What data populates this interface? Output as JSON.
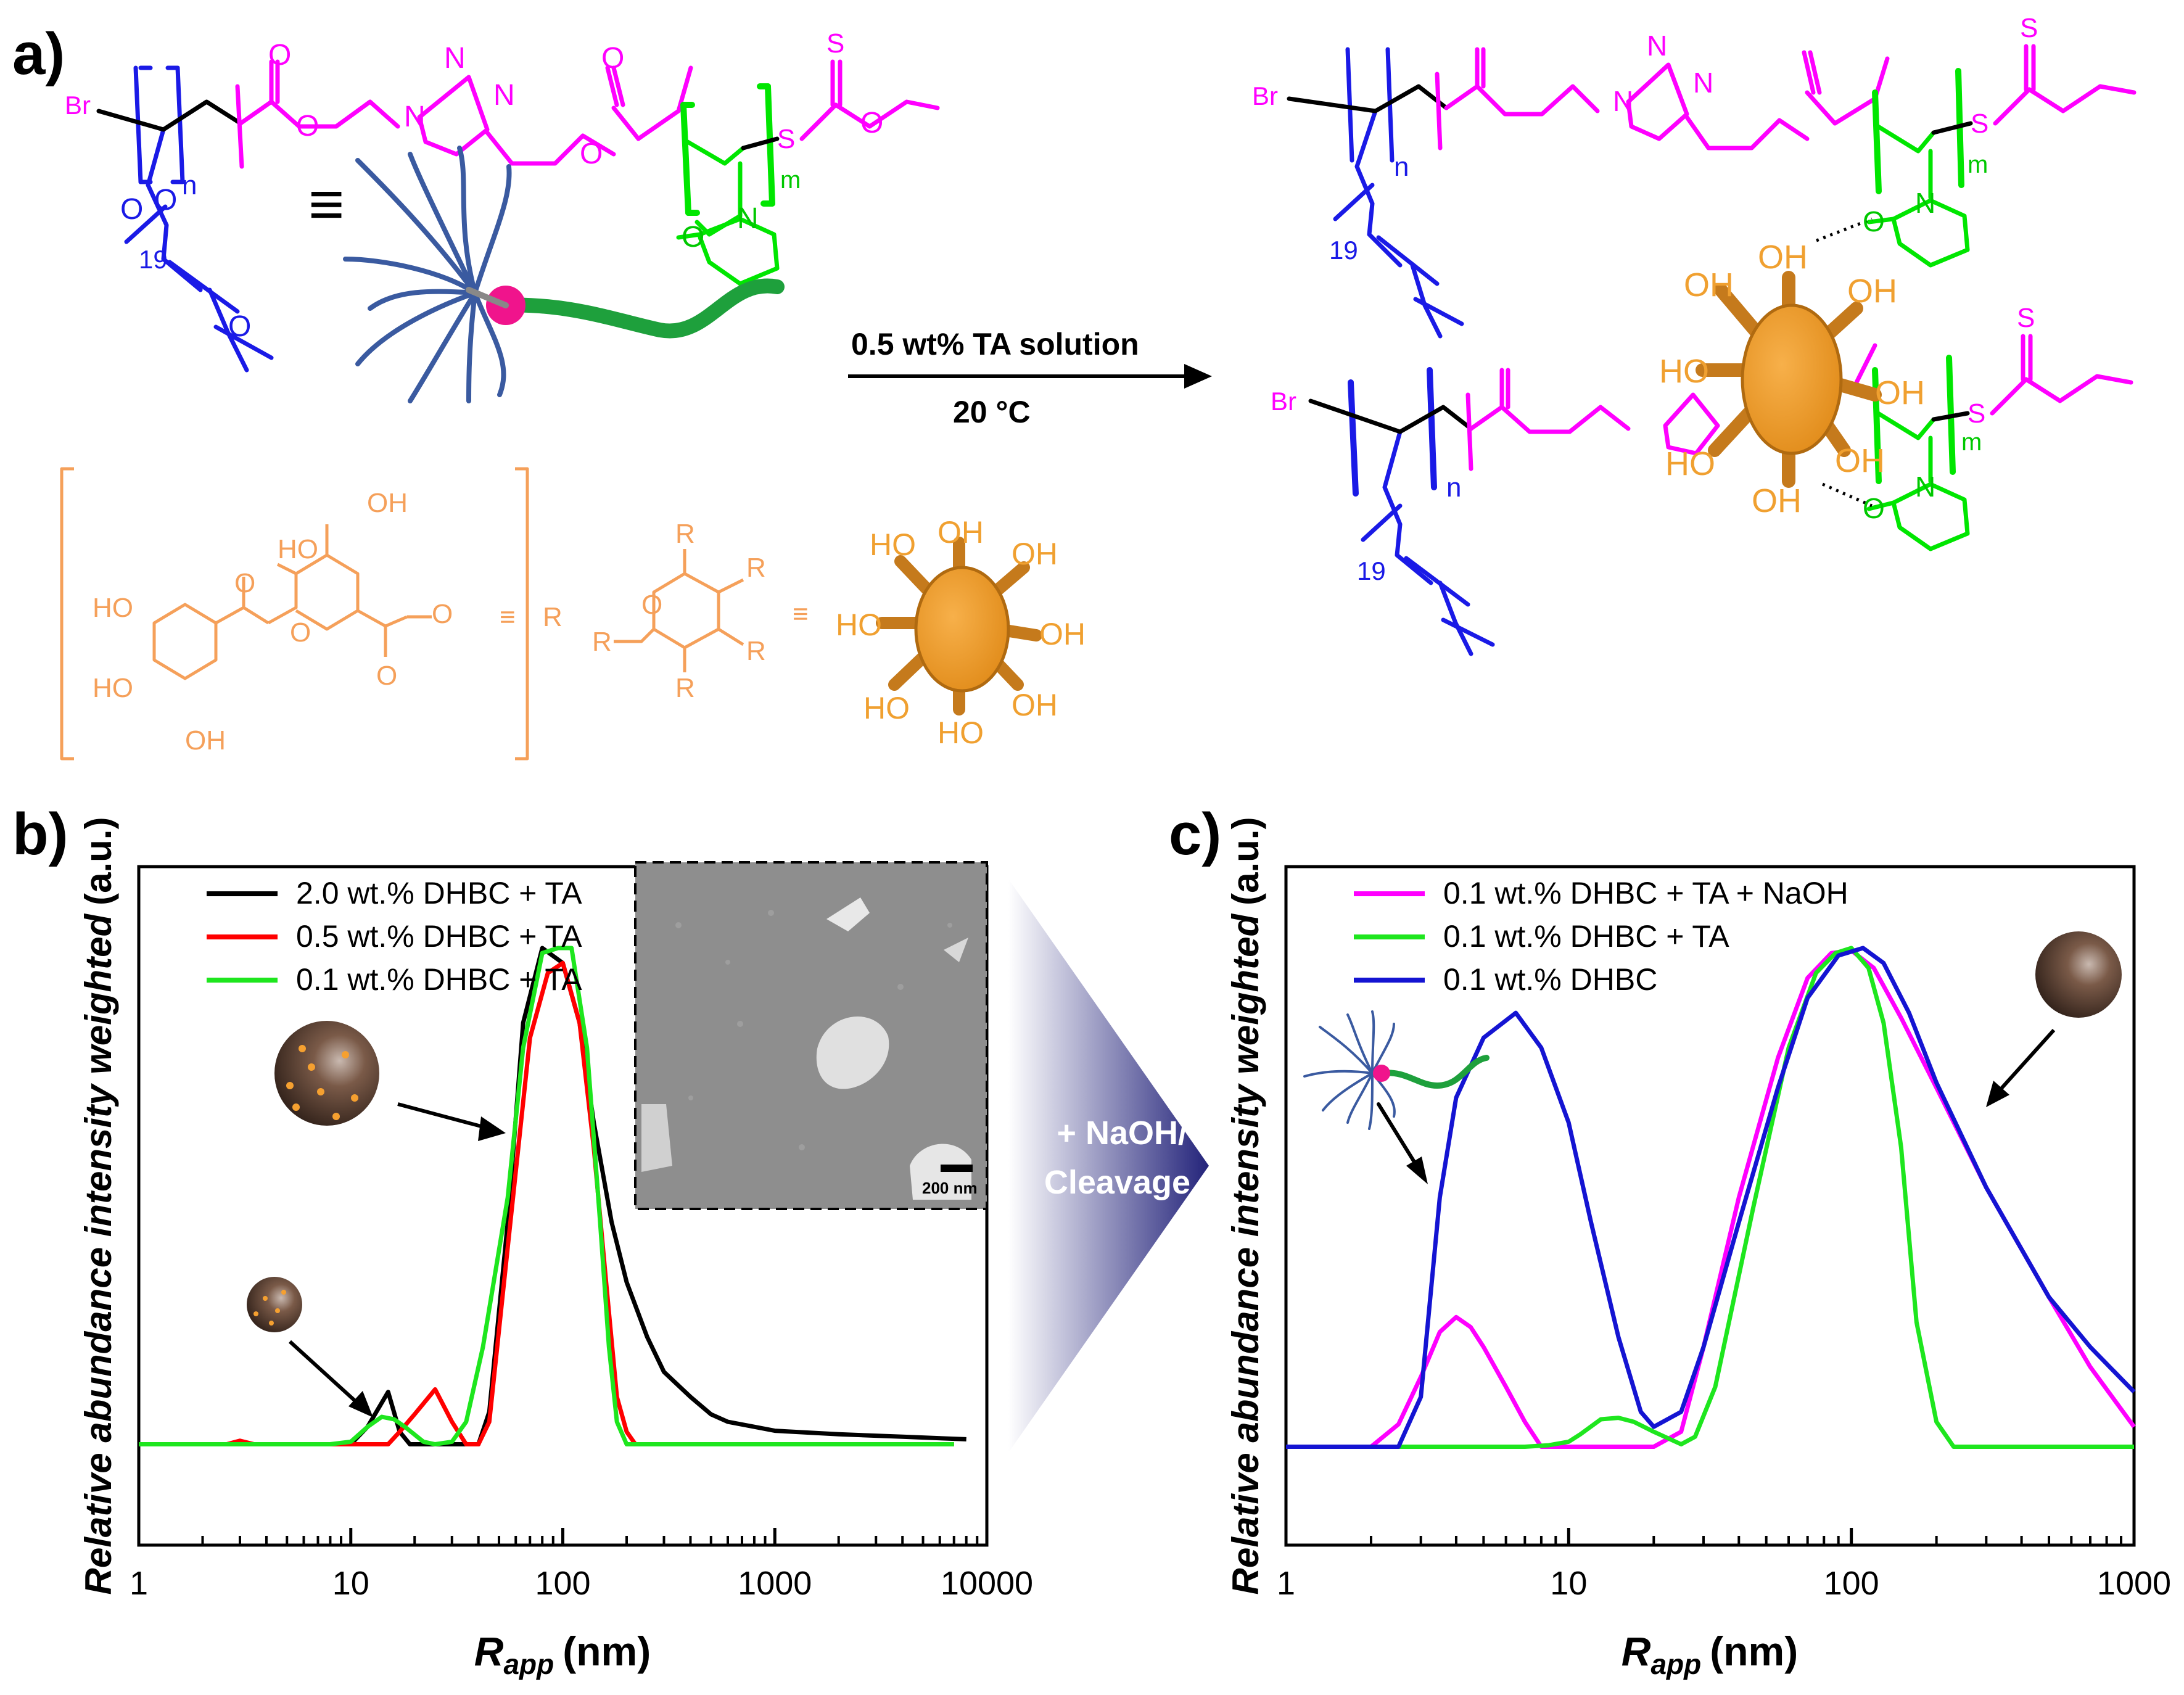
{
  "panel_labels": {
    "a": "a)",
    "b": "b)",
    "c": "c)"
  },
  "scheme": {
    "br": "Br",
    "n": "n",
    "m": "m",
    "nineteen": "19",
    "o": "O",
    "s": "S",
    "n_atom": "N",
    "equiv": "≡",
    "reagent": "0.5 wt% TA solution",
    "temperature": "20 °C",
    "ta_r": "R",
    "ta_oh": "OH",
    "ta_ho": "HO",
    "sphere_oh": "OH",
    "sphere_ho": "HO"
  },
  "colors": {
    "blue_block": "#1a1ae6",
    "magenta_linker": "#ff00ff",
    "green_block": "#00e600",
    "ta_orange": "#f5a05a",
    "sphere_orange": "#f0a030",
    "sphere_brown": "#8a5a2a",
    "navy_arrow": "#2a2a8a",
    "curve_black": "#000000",
    "curve_red": "#ff0000",
    "curve_green": "#1ee61e",
    "curve_magenta": "#ff00ff",
    "curve_blue": "#1414d2"
  },
  "middle_arrow": {
    "line1": "+ NaOH/",
    "line2": "Cleavage"
  },
  "inset": {
    "scale_bar": "200 nm"
  },
  "chart_data": [
    {
      "type": "line",
      "panel": "b",
      "xscale": "log",
      "xlim": [
        1,
        10000
      ],
      "ylim": [
        0,
        1.1
      ],
      "xlabel_main": "R",
      "xlabel_sub": "app",
      "xlabel_unit": "(nm)",
      "ylabel": "Relative abundance intensity weighted (a.u.)",
      "ylabel_italic": "Relative abundance intensity weighted",
      "ylabel_unit": "(a.u.)",
      "x_tick_labels": [
        "1",
        "10",
        "100",
        "1000",
        "10000"
      ],
      "x_tick_values": [
        1,
        10,
        100,
        1000,
        10000
      ],
      "legend_position": "top-left",
      "series": [
        {
          "name": "2.0 wt.% DHBC + TA",
          "color": "#000000",
          "points": [
            [
              1,
              0.005
            ],
            [
              1.5,
              0.005
            ],
            [
              2,
              0.005
            ],
            [
              3,
              0.005
            ],
            [
              5,
              0.005
            ],
            [
              8,
              0.005
            ],
            [
              10,
              0.005
            ],
            [
              12,
              0.04
            ],
            [
              15,
              0.11
            ],
            [
              17,
              0.03
            ],
            [
              19,
              0.005
            ],
            [
              30,
              0.005
            ],
            [
              40,
              0.005
            ],
            [
              45,
              0.07
            ],
            [
              55,
              0.45
            ],
            [
              65,
              0.85
            ],
            [
              80,
              1.0
            ],
            [
              100,
              0.97
            ],
            [
              120,
              0.85
            ],
            [
              140,
              0.65
            ],
            [
              170,
              0.45
            ],
            [
              200,
              0.33
            ],
            [
              250,
              0.22
            ],
            [
              300,
              0.15
            ],
            [
              400,
              0.1
            ],
            [
              500,
              0.065
            ],
            [
              600,
              0.05
            ],
            [
              800,
              0.04
            ],
            [
              1000,
              0.032
            ],
            [
              2000,
              0.025
            ],
            [
              4000,
              0.02
            ],
            [
              8000,
              0.015
            ]
          ]
        },
        {
          "name": "0.5 wt.% DHBC + TA",
          "color": "#ff0000",
          "points": [
            [
              1,
              0.005
            ],
            [
              2,
              0.005
            ],
            [
              2.6,
              0.005
            ],
            [
              3,
              0.012
            ],
            [
              3.5,
              0.005
            ],
            [
              5,
              0.005
            ],
            [
              8,
              0.005
            ],
            [
              10,
              0.005
            ],
            [
              15,
              0.005
            ],
            [
              17,
              0.03
            ],
            [
              20,
              0.065
            ],
            [
              25,
              0.115
            ],
            [
              30,
              0.05
            ],
            [
              35,
              0.005
            ],
            [
              40,
              0.005
            ],
            [
              45,
              0.05
            ],
            [
              55,
              0.4
            ],
            [
              70,
              0.82
            ],
            [
              85,
              0.95
            ],
            [
              100,
              0.97
            ],
            [
              120,
              0.85
            ],
            [
              140,
              0.6
            ],
            [
              160,
              0.33
            ],
            [
              180,
              0.1
            ],
            [
              200,
              0.03
            ],
            [
              220,
              0.005
            ],
            [
              500,
              0.005
            ],
            [
              7000,
              0.005
            ]
          ]
        },
        {
          "name": "0.1 wt.% DHBC + TA",
          "color": "#1ee61e",
          "points": [
            [
              1,
              0.005
            ],
            [
              2,
              0.005
            ],
            [
              5,
              0.005
            ],
            [
              8,
              0.005
            ],
            [
              10,
              0.01
            ],
            [
              12,
              0.04
            ],
            [
              14,
              0.06
            ],
            [
              16,
              0.055
            ],
            [
              18,
              0.04
            ],
            [
              22,
              0.01
            ],
            [
              25,
              0.005
            ],
            [
              30,
              0.01
            ],
            [
              35,
              0.05
            ],
            [
              42,
              0.2
            ],
            [
              55,
              0.5
            ],
            [
              65,
              0.8
            ],
            [
              80,
              0.99
            ],
            [
              95,
              1.0
            ],
            [
              110,
              1.0
            ],
            [
              130,
              0.8
            ],
            [
              150,
              0.45
            ],
            [
              165,
              0.2
            ],
            [
              180,
              0.05
            ],
            [
              200,
              0.005
            ],
            [
              500,
              0.005
            ],
            [
              1000,
              0.005
            ],
            [
              7000,
              0.005
            ]
          ]
        }
      ]
    },
    {
      "type": "line",
      "panel": "c",
      "xscale": "log",
      "xlim": [
        1,
        1000
      ],
      "ylim": [
        0,
        1.1
      ],
      "xlabel_main": "R",
      "xlabel_sub": "app",
      "xlabel_unit": "(nm)",
      "ylabel": "Relative abundance intensity weighted (a.u.)",
      "ylabel_italic": "Relative abundance intensity weighted",
      "ylabel_unit": "(a.u.)",
      "x_tick_labels": [
        "1",
        "10",
        "100",
        "1000"
      ],
      "x_tick_values": [
        1,
        10,
        100,
        1000
      ],
      "legend_position": "top-left",
      "series": [
        {
          "name": "0.1 wt.% DHBC + TA + NaOH",
          "color": "#ff00ff",
          "points": [
            [
              1,
              0
            ],
            [
              2,
              0
            ],
            [
              2.5,
              0.045
            ],
            [
              3,
              0.14
            ],
            [
              3.5,
              0.23
            ],
            [
              4,
              0.26
            ],
            [
              4.5,
              0.24
            ],
            [
              5,
              0.2
            ],
            [
              6,
              0.12
            ],
            [
              7,
              0.05
            ],
            [
              8,
              0.0
            ],
            [
              10,
              0.0
            ],
            [
              20,
              0.0
            ],
            [
              25,
              0.03
            ],
            [
              30,
              0.2
            ],
            [
              40,
              0.5
            ],
            [
              55,
              0.78
            ],
            [
              70,
              0.94
            ],
            [
              85,
              0.99
            ],
            [
              100,
              0.995
            ],
            [
              120,
              0.96
            ],
            [
              150,
              0.86
            ],
            [
              200,
              0.72
            ],
            [
              300,
              0.52
            ],
            [
              500,
              0.3
            ],
            [
              700,
              0.16
            ],
            [
              1000,
              0.04
            ]
          ]
        },
        {
          "name": "0.1 wt.% DHBC + TA",
          "color": "#1ee61e",
          "points": [
            [
              1,
              0
            ],
            [
              2,
              0
            ],
            [
              5,
              0
            ],
            [
              7,
              0
            ],
            [
              8.5,
              0.003
            ],
            [
              10,
              0.01
            ],
            [
              11,
              0.025
            ],
            [
              13,
              0.055
            ],
            [
              15,
              0.058
            ],
            [
              17,
              0.05
            ],
            [
              20,
              0.03
            ],
            [
              25,
              0.005
            ],
            [
              28,
              0.02
            ],
            [
              33,
              0.12
            ],
            [
              45,
              0.48
            ],
            [
              60,
              0.8
            ],
            [
              75,
              0.95
            ],
            [
              88,
              0.99
            ],
            [
              100,
              1.0
            ],
            [
              115,
              0.96
            ],
            [
              130,
              0.85
            ],
            [
              150,
              0.6
            ],
            [
              170,
              0.25
            ],
            [
              200,
              0.05
            ],
            [
              230,
              0.0
            ],
            [
              500,
              0
            ],
            [
              1000,
              0
            ]
          ]
        },
        {
          "name": "0.1 wt.% DHBC",
          "color": "#1414d2",
          "points": [
            [
              1,
              0
            ],
            [
              2,
              0
            ],
            [
              2.5,
              0.0
            ],
            [
              3,
              0.1
            ],
            [
              3.5,
              0.5
            ],
            [
              4,
              0.7
            ],
            [
              5,
              0.82
            ],
            [
              6.5,
              0.87
            ],
            [
              8,
              0.8
            ],
            [
              10,
              0.65
            ],
            [
              12,
              0.45
            ],
            [
              15,
              0.22
            ],
            [
              18,
              0.07
            ],
            [
              20,
              0.04
            ],
            [
              25,
              0.07
            ],
            [
              30,
              0.2
            ],
            [
              40,
              0.45
            ],
            [
              55,
              0.72
            ],
            [
              70,
              0.9
            ],
            [
              90,
              0.985
            ],
            [
              110,
              1.0
            ],
            [
              130,
              0.97
            ],
            [
              160,
              0.87
            ],
            [
              200,
              0.73
            ],
            [
              300,
              0.52
            ],
            [
              500,
              0.3
            ],
            [
              700,
              0.2
            ],
            [
              1000,
              0.11
            ]
          ]
        }
      ]
    }
  ]
}
